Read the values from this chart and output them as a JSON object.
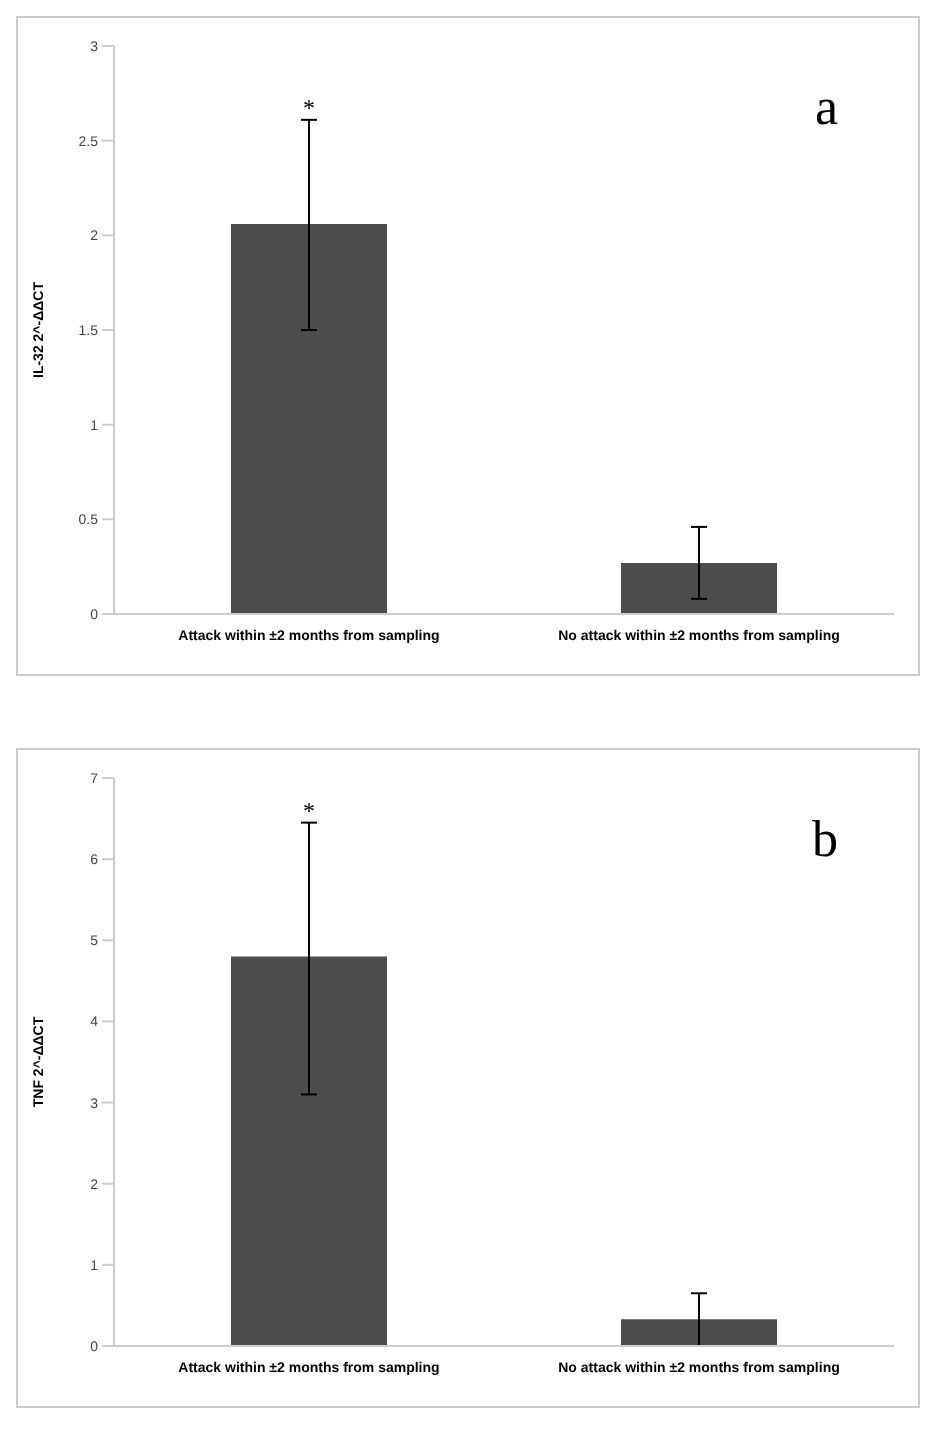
{
  "chart_data": [
    {
      "type": "bar",
      "categories": [
        "Attack within ±2 months from sampling",
        "No attack within ±2 months from sampling"
      ],
      "values": [
        2.06,
        0.27
      ],
      "color": "#4d4d4d",
      "errors": [
        [
          1.5,
          2.61
        ],
        [
          0.08,
          0.46
        ]
      ],
      "ylabel": "IL-32 2^-ΔΔCT",
      "ylim": [
        0,
        3
      ],
      "yticks": [
        0,
        0.5,
        1,
        1.5,
        2,
        2.5,
        3
      ],
      "grid": false,
      "annotations": [
        "*",
        "a"
      ]
    },
    {
      "type": "bar",
      "categories": [
        "Attack within ±2 months from sampling",
        "No attack within ±2 months from sampling"
      ],
      "values": [
        4.8,
        0.33
      ],
      "color": "#4d4d4d",
      "errors": [
        [
          3.1,
          6.45
        ],
        [
          0,
          0.65
        ]
      ],
      "ylabel": "TNF 2^-ΔΔCT",
      "ylim": [
        0,
        7
      ],
      "yticks": [
        0,
        1,
        2,
        3,
        4,
        5,
        6,
        7
      ],
      "grid": false,
      "annotations": [
        "*",
        "b"
      ]
    }
  ]
}
